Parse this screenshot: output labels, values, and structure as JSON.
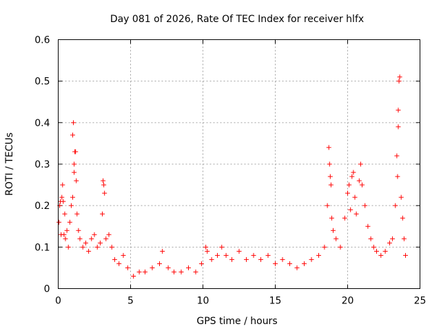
{
  "chart_data": {
    "type": "scatter",
    "title": "Day 081 of 2026, Rate Of TEC Index for receiver hlfx",
    "xlabel": "GPS time / hours",
    "ylabel": "ROTI / TECUs",
    "xlim": [
      0,
      25
    ],
    "ylim": [
      0,
      0.6
    ],
    "xticks": [
      0,
      5,
      10,
      15,
      20,
      25
    ],
    "xtick_labels": [
      "0",
      "5",
      "10",
      "15",
      "20",
      "25"
    ],
    "yticks": [
      0,
      0.1,
      0.2,
      0.3,
      0.4,
      0.5,
      0.6
    ],
    "ytick_labels": [
      "0",
      "0.1",
      "0.2",
      "0.3",
      "0.4",
      "0.5",
      "0.6"
    ],
    "grid": true,
    "marker": "+",
    "color": "#ff0000",
    "series": [
      {
        "name": "ROTI",
        "points": [
          [
            0.05,
            0.16
          ],
          [
            0.1,
            0.2
          ],
          [
            0.15,
            0.21
          ],
          [
            0.2,
            0.13
          ],
          [
            0.25,
            0.22
          ],
          [
            0.3,
            0.25
          ],
          [
            0.35,
            0.21
          ],
          [
            0.4,
            0.13
          ],
          [
            0.45,
            0.18
          ],
          [
            0.5,
            0.12
          ],
          [
            0.6,
            0.14
          ],
          [
            0.7,
            0.1
          ],
          [
            0.8,
            0.16
          ],
          [
            0.9,
            0.2
          ],
          [
            1.0,
            0.37
          ],
          [
            1.05,
            0.4
          ],
          [
            1.1,
            0.3
          ],
          [
            1.15,
            0.33
          ],
          [
            1.2,
            0.33
          ],
          [
            1.25,
            0.26
          ],
          [
            1.1,
            0.28
          ],
          [
            1.0,
            0.22
          ],
          [
            1.3,
            0.18
          ],
          [
            1.4,
            0.14
          ],
          [
            1.5,
            0.12
          ],
          [
            1.7,
            0.1
          ],
          [
            1.9,
            0.11
          ],
          [
            2.1,
            0.09
          ],
          [
            2.3,
            0.12
          ],
          [
            2.5,
            0.13
          ],
          [
            2.7,
            0.1
          ],
          [
            2.9,
            0.11
          ],
          [
            3.1,
            0.26
          ],
          [
            3.15,
            0.25
          ],
          [
            3.2,
            0.23
          ],
          [
            3.05,
            0.18
          ],
          [
            3.3,
            0.12
          ],
          [
            3.5,
            0.13
          ],
          [
            3.7,
            0.1
          ],
          [
            3.9,
            0.07
          ],
          [
            4.2,
            0.06
          ],
          [
            4.5,
            0.08
          ],
          [
            4.8,
            0.05
          ],
          [
            5.2,
            0.03
          ],
          [
            5.6,
            0.04
          ],
          [
            6.0,
            0.04
          ],
          [
            6.5,
            0.05
          ],
          [
            7.0,
            0.06
          ],
          [
            7.2,
            0.09
          ],
          [
            7.6,
            0.05
          ],
          [
            8.0,
            0.04
          ],
          [
            8.5,
            0.04
          ],
          [
            9.0,
            0.05
          ],
          [
            9.5,
            0.04
          ],
          [
            9.9,
            0.06
          ],
          [
            10.2,
            0.1
          ],
          [
            10.3,
            0.09
          ],
          [
            10.6,
            0.07
          ],
          [
            11.0,
            0.08
          ],
          [
            11.3,
            0.1
          ],
          [
            11.6,
            0.08
          ],
          [
            12.0,
            0.07
          ],
          [
            12.5,
            0.09
          ],
          [
            13.0,
            0.07
          ],
          [
            13.5,
            0.08
          ],
          [
            14.0,
            0.07
          ],
          [
            14.5,
            0.08
          ],
          [
            15.0,
            0.06
          ],
          [
            15.5,
            0.07
          ],
          [
            16.0,
            0.06
          ],
          [
            16.5,
            0.05
          ],
          [
            17.0,
            0.06
          ],
          [
            17.5,
            0.07
          ],
          [
            18.0,
            0.08
          ],
          [
            18.4,
            0.1
          ],
          [
            18.6,
            0.2
          ],
          [
            18.7,
            0.34
          ],
          [
            18.75,
            0.3
          ],
          [
            18.8,
            0.27
          ],
          [
            18.85,
            0.25
          ],
          [
            18.9,
            0.17
          ],
          [
            19.0,
            0.14
          ],
          [
            19.2,
            0.12
          ],
          [
            19.5,
            0.1
          ],
          [
            19.8,
            0.17
          ],
          [
            20.0,
            0.23
          ],
          [
            20.1,
            0.25
          ],
          [
            20.2,
            0.19
          ],
          [
            20.3,
            0.27
          ],
          [
            20.4,
            0.28
          ],
          [
            20.5,
            0.22
          ],
          [
            20.6,
            0.18
          ],
          [
            20.8,
            0.26
          ],
          [
            20.9,
            0.3
          ],
          [
            21.0,
            0.25
          ],
          [
            21.2,
            0.2
          ],
          [
            21.4,
            0.15
          ],
          [
            21.6,
            0.12
          ],
          [
            21.8,
            0.1
          ],
          [
            22.0,
            0.09
          ],
          [
            22.3,
            0.08
          ],
          [
            22.6,
            0.09
          ],
          [
            22.9,
            0.11
          ],
          [
            23.1,
            0.12
          ],
          [
            23.3,
            0.2
          ],
          [
            23.4,
            0.32
          ],
          [
            23.5,
            0.43
          ],
          [
            23.55,
            0.5
          ],
          [
            23.6,
            0.51
          ],
          [
            23.5,
            0.39
          ],
          [
            23.45,
            0.27
          ],
          [
            23.7,
            0.22
          ],
          [
            23.8,
            0.17
          ],
          [
            23.9,
            0.12
          ],
          [
            24.0,
            0.08
          ]
        ]
      }
    ]
  }
}
